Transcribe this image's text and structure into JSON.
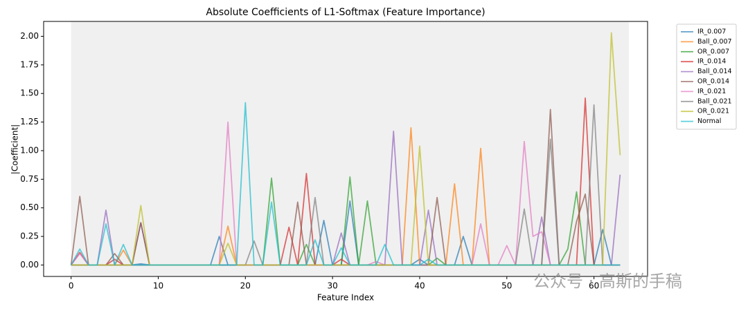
{
  "chart_data": {
    "type": "line",
    "title": "Absolute Coefficients of L1-Softmax (Feature Importance)",
    "xlabel": "Feature Index",
    "ylabel": "|Coefficient|",
    "watermark": "公众号 · 高斯的手稿",
    "highlight_span": [
      0,
      64
    ],
    "xlim": [
      -3.15,
      66.15
    ],
    "ylim": [
      -0.1,
      2.13
    ],
    "xticks": [
      0,
      10,
      20,
      30,
      40,
      50,
      60
    ],
    "yticks": [
      {
        "value": 0,
        "label": "0.00"
      },
      {
        "value": 0.25,
        "label": "0.25"
      },
      {
        "value": 0.5,
        "label": "0.50"
      },
      {
        "value": 0.75,
        "label": "0.75"
      },
      {
        "value": 1,
        "label": "1.00"
      },
      {
        "value": 1.25,
        "label": "1.25"
      },
      {
        "value": 1.5,
        "label": "1.50"
      },
      {
        "value": 1.75,
        "label": "1.75"
      },
      {
        "value": 2,
        "label": "2.00"
      }
    ],
    "legend": "outside-upper-right",
    "x": [
      0,
      1,
      2,
      3,
      4,
      5,
      6,
      7,
      8,
      9,
      10,
      11,
      12,
      13,
      14,
      15,
      16,
      17,
      18,
      19,
      20,
      21,
      22,
      23,
      24,
      25,
      26,
      27,
      28,
      29,
      30,
      31,
      32,
      33,
      34,
      35,
      36,
      37,
      38,
      39,
      40,
      41,
      42,
      43,
      44,
      45,
      46,
      47,
      48,
      49,
      50,
      51,
      52,
      53,
      54,
      55,
      56,
      57,
      58,
      59,
      60,
      61,
      62,
      63
    ],
    "series": [
      {
        "name": "IR_0.007",
        "color": "#1f77b4",
        "values": [
          0,
          0,
          0,
          0,
          0,
          0,
          0,
          0,
          0.01,
          0,
          0,
          0,
          0,
          0,
          0,
          0,
          0,
          0.25,
          0,
          0,
          0,
          0,
          0,
          0,
          0,
          0,
          0,
          0,
          0,
          0.39,
          0,
          0,
          0.56,
          0,
          0,
          0,
          0,
          0,
          0,
          0,
          0.05,
          0,
          0,
          0,
          0,
          0.25,
          0,
          0,
          0,
          0,
          0,
          0,
          0,
          0,
          0,
          0,
          0,
          0,
          0,
          0,
          0,
          0.31,
          0,
          0
        ]
      },
      {
        "name": "Ball_0.007",
        "color": "#ff7f0e",
        "values": [
          0,
          0,
          0,
          0,
          0,
          0,
          0.13,
          0,
          0,
          0,
          0,
          0,
          0,
          0,
          0,
          0,
          0,
          0,
          0.34,
          0,
          0,
          0,
          0,
          0,
          0,
          0,
          0,
          0,
          0,
          0,
          0,
          0,
          0,
          0,
          0,
          0,
          0,
          0,
          0,
          1.2,
          0,
          0,
          0,
          0,
          0.71,
          0,
          0,
          1.02,
          0,
          0,
          0,
          0,
          0,
          0,
          0,
          0,
          0,
          0,
          0,
          0,
          0,
          0,
          0,
          0
        ]
      },
      {
        "name": "OR_0.007",
        "color": "#2ca02c",
        "values": [
          0,
          0,
          0,
          0,
          0,
          0,
          0,
          0,
          0,
          0,
          0,
          0,
          0,
          0,
          0,
          0,
          0,
          0,
          0,
          0,
          0,
          0,
          0,
          0.76,
          0,
          0,
          0,
          0.18,
          0,
          0,
          0,
          0,
          0.77,
          0,
          0.56,
          0,
          0,
          0,
          0,
          0,
          0,
          0,
          0.06,
          0,
          0,
          0,
          0,
          0,
          0,
          0,
          0,
          0,
          0,
          0,
          0,
          0,
          0,
          0.14,
          0.64,
          0,
          0,
          0,
          0,
          0
        ]
      },
      {
        "name": "IR_0.014",
        "color": "#d62728",
        "values": [
          0,
          0.11,
          0,
          0,
          0,
          0.05,
          0,
          0,
          0,
          0,
          0,
          0,
          0,
          0,
          0,
          0,
          0,
          0,
          0,
          0,
          0,
          0,
          0,
          0,
          0,
          0.33,
          0,
          0.8,
          0,
          0,
          0,
          0.05,
          0,
          0,
          0,
          0,
          0,
          0,
          0,
          0,
          0,
          0,
          0,
          0,
          0,
          0,
          0,
          0,
          0,
          0,
          0,
          0,
          0,
          0,
          0,
          0,
          0,
          0,
          0,
          1.46,
          0,
          0,
          0,
          0
        ]
      },
      {
        "name": "Ball_0.014",
        "color": "#9467bd",
        "values": [
          0,
          0,
          0,
          0,
          0.48,
          0,
          0,
          0,
          0.37,
          0,
          0,
          0,
          0,
          0,
          0,
          0,
          0,
          0,
          0,
          0,
          0,
          0,
          0,
          0,
          0,
          0,
          0,
          0,
          0,
          0,
          0,
          0.28,
          0,
          0,
          0,
          0,
          0,
          1.17,
          0,
          0,
          0,
          0.48,
          0,
          0,
          0,
          0,
          0,
          0,
          0,
          0,
          0,
          0,
          0,
          0,
          0.42,
          0,
          0,
          0,
          0,
          0,
          0,
          0,
          0,
          0.79
        ]
      },
      {
        "name": "OR_0.014",
        "color": "#8c564b",
        "values": [
          0,
          0.6,
          0,
          0,
          0,
          0.1,
          0,
          0,
          0.37,
          0,
          0,
          0,
          0,
          0,
          0,
          0,
          0,
          0,
          0,
          0,
          0,
          0,
          0,
          0,
          0,
          0,
          0.55,
          0,
          0,
          0,
          0,
          0,
          0,
          0,
          0,
          0,
          0,
          0,
          0,
          0,
          0,
          0,
          0.59,
          0,
          0,
          0,
          0,
          0,
          0,
          0,
          0,
          0,
          0,
          0,
          0,
          1.36,
          0,
          0,
          0.38,
          0.62,
          0,
          0,
          0,
          0
        ]
      },
      {
        "name": "IR_0.021",
        "color": "#e377c2",
        "values": [
          0,
          0.1,
          0,
          0,
          0,
          0,
          0,
          0,
          0,
          0,
          0,
          0,
          0,
          0,
          0,
          0,
          0,
          0,
          1.25,
          0,
          0,
          0,
          0,
          0,
          0,
          0,
          0,
          0,
          0,
          0,
          0,
          0,
          0,
          0,
          0,
          0.03,
          0,
          0,
          0,
          0,
          0,
          0,
          0,
          0,
          0,
          0,
          0,
          0.36,
          0,
          0,
          0.17,
          0,
          1.08,
          0.25,
          0.29,
          0,
          0,
          0,
          0,
          0,
          0,
          0,
          0,
          0
        ]
      },
      {
        "name": "Ball_0.021",
        "color": "#7f7f7f",
        "values": [
          0,
          0,
          0,
          0,
          0,
          0,
          0,
          0,
          0,
          0,
          0,
          0,
          0,
          0,
          0,
          0,
          0,
          0,
          0,
          0,
          0,
          0.21,
          0,
          0,
          0,
          0,
          0,
          0,
          0.59,
          0,
          0,
          0,
          0,
          0,
          0,
          0,
          0,
          0,
          0,
          0,
          0,
          0,
          0,
          0,
          0,
          0,
          0,
          0,
          0,
          0,
          0,
          0,
          0.49,
          0,
          0,
          1.1,
          0,
          0,
          0,
          0,
          1.4,
          0,
          0,
          0
        ]
      },
      {
        "name": "OR_0.021",
        "color": "#bcbd22",
        "values": [
          0,
          0,
          0,
          0,
          0,
          0,
          0,
          0,
          0.52,
          0,
          0,
          0,
          0,
          0,
          0,
          0,
          0,
          0,
          0.19,
          0,
          0,
          0,
          0,
          0,
          0,
          0,
          0,
          0,
          0,
          0,
          0,
          0,
          0,
          0,
          0,
          0,
          0,
          0,
          0,
          0,
          1.04,
          0,
          0,
          0,
          0,
          0,
          0,
          0,
          0,
          0,
          0,
          0,
          0,
          0,
          0,
          0,
          0,
          0,
          0,
          0,
          0,
          0,
          2.03,
          0.96
        ]
      },
      {
        "name": "Normal",
        "color": "#17becf",
        "values": [
          0,
          0.14,
          0,
          0,
          0.36,
          0,
          0.18,
          0,
          0,
          0,
          0,
          0,
          0,
          0,
          0,
          0,
          0,
          0,
          0,
          0,
          1.42,
          0,
          0,
          0.55,
          0,
          0,
          0,
          0,
          0.22,
          0,
          0,
          0.15,
          0,
          0,
          0,
          0,
          0.18,
          0,
          0,
          0,
          0,
          0.05,
          0,
          0,
          0,
          0,
          0,
          0,
          0,
          0,
          0,
          0,
          0,
          0,
          0,
          0,
          0,
          0,
          0,
          0,
          0,
          0,
          0,
          0
        ]
      }
    ]
  }
}
